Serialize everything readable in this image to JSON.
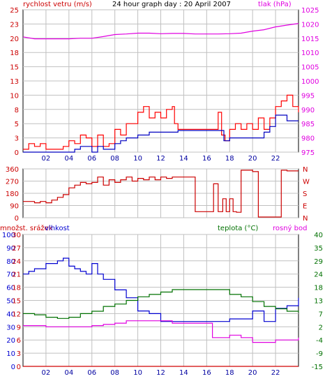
{
  "colors": {
    "wind": "#ff0000",
    "gust_dark": "#0000c0",
    "pressure": "#e000e0",
    "dir": "#cc0000",
    "temp": "#007000",
    "dew": "#e000e0",
    "humid": "#0000d0",
    "rain": "#d00000",
    "frame": "#000000",
    "grid": "#c0c0c0",
    "bg": "#ffffff"
  },
  "chart_data": [
    {
      "type": "line",
      "title": "24 hour graph day : 20 April 2007",
      "left_label": "rychlost vetru (m/s)",
      "right_label": "tlak (hPa)",
      "left_ticks": [
        "25",
        "23",
        "20",
        "18",
        "15",
        "13",
        "10",
        "8",
        "5",
        "3",
        "0"
      ],
      "right_ticks": [
        "1025",
        "1020",
        "1015",
        "1010",
        "1005",
        "1000",
        "995",
        "990",
        "985",
        "980",
        "975"
      ],
      "ylim_left": [
        0,
        25
      ],
      "ylim_right": [
        975,
        1025
      ],
      "xlim": [
        0,
        24
      ],
      "x_ticks": [
        "02",
        "04",
        "06",
        "08",
        "10",
        "12",
        "14",
        "16",
        "18",
        "20",
        "22"
      ],
      "series": [
        {
          "key": "gust",
          "color": "#ff0000",
          "x": [
            0,
            0.5,
            1,
            1.5,
            2,
            2.5,
            3,
            3.5,
            4,
            4.5,
            5,
            5.5,
            6,
            6.5,
            7,
            7.5,
            8,
            8.5,
            9,
            9.5,
            10,
            10.5,
            11,
            11.5,
            12,
            12.5,
            13,
            13.2,
            13.5,
            14,
            15,
            16,
            16.5,
            17,
            17.3,
            17.6,
            18,
            18.5,
            19,
            19.5,
            20,
            20.5,
            21,
            21.5,
            22,
            22.5,
            23,
            23.5,
            24
          ],
          "y": [
            0.5,
            1.5,
            1,
            1.5,
            0.5,
            0.5,
            0.5,
            1,
            2,
            1.5,
            3,
            2.5,
            1,
            3,
            1,
            1.5,
            4,
            3,
            5,
            5,
            7,
            8,
            6,
            7,
            6,
            7.5,
            8,
            5,
            4,
            4,
            4,
            4,
            4,
            7,
            3,
            2,
            4,
            5,
            4,
            5,
            4,
            6,
            4,
            6,
            8,
            9,
            10,
            8,
            7
          ]
        },
        {
          "key": "avg",
          "color": "#0000c0",
          "x": [
            0,
            1,
            2,
            3,
            4,
            4.5,
            5,
            6,
            6.5,
            7,
            8,
            8.5,
            9,
            10,
            11,
            12,
            13,
            13.5,
            14,
            15,
            16,
            16.5,
            17,
            17.5,
            18,
            19,
            20,
            21,
            21.5,
            22,
            23,
            24
          ],
          "y": [
            0,
            0,
            0,
            0,
            0,
            0.5,
            1,
            0,
            1,
            0.5,
            1.5,
            2,
            2.5,
            3,
            3.5,
            3.5,
            3.5,
            3.8,
            3.8,
            3.8,
            3.8,
            3.8,
            3.8,
            2,
            2.5,
            2.5,
            2.5,
            3.5,
            4.5,
            6.5,
            5.5,
            5.5
          ]
        },
        {
          "key": "pressure",
          "color": "#e000e0",
          "axis": "right",
          "x": [
            0,
            1,
            2,
            3,
            4,
            5,
            6,
            7,
            8,
            9,
            10,
            11,
            12,
            13,
            14,
            15,
            16,
            17,
            18,
            19,
            20,
            21,
            22,
            23,
            24
          ],
          "y": [
            1015.5,
            1014.8,
            1014.8,
            1014.8,
            1014.8,
            1015,
            1015,
            1015.6,
            1016.3,
            1016.5,
            1016.8,
            1016.8,
            1016.6,
            1016.7,
            1016.7,
            1016.5,
            1016.5,
            1016.5,
            1016.6,
            1016.8,
            1017.5,
            1018,
            1019,
            1019.6,
            1020.2
          ]
        }
      ]
    },
    {
      "type": "line",
      "right_label_letters": [
        "N",
        "W",
        "S",
        "E",
        "N"
      ],
      "left_ticks": [
        "360",
        "270",
        "180",
        "90",
        "0"
      ],
      "ylim": [
        0,
        360
      ],
      "series": [
        {
          "key": "direction",
          "color": "#cc0000",
          "x": [
            0,
            0.5,
            1,
            1.5,
            2,
            2.5,
            3,
            3.5,
            4,
            4.5,
            5,
            5.5,
            6,
            6.5,
            7,
            7.5,
            8,
            8.5,
            9,
            9.5,
            10,
            10.5,
            11,
            11.5,
            12,
            12.5,
            13,
            13.5,
            14,
            15,
            16,
            16.3,
            16.6,
            17,
            17.4,
            17.7,
            18,
            18.3,
            18.6,
            19,
            19.5,
            20,
            20.5,
            21,
            21.5,
            22,
            22.5,
            23,
            24
          ],
          "y": [
            120,
            120,
            110,
            120,
            110,
            130,
            150,
            170,
            220,
            240,
            260,
            250,
            260,
            300,
            240,
            280,
            260,
            280,
            300,
            270,
            290,
            280,
            300,
            280,
            300,
            290,
            300,
            300,
            300,
            45,
            45,
            45,
            250,
            45,
            140,
            45,
            140,
            45,
            40,
            350,
            350,
            340,
            5,
            5,
            5,
            5,
            350,
            345,
            345
          ]
        }
      ]
    },
    {
      "type": "line",
      "labels": {
        "left1": "množst. srážek",
        "left2": "vlhkost",
        "temp": "teplota (°C)",
        "dew": "rosný bod"
      },
      "humid_ticks": [
        "100",
        "90",
        "80",
        "70",
        "60",
        "50",
        "40",
        "30",
        "20",
        "10",
        "0"
      ],
      "rain_ticks": [
        "30",
        "27",
        "24",
        "21",
        "18",
        "15",
        "12",
        "9",
        "6",
        "3",
        "0"
      ],
      "temp_ticks": [
        "40",
        "35",
        "29",
        "24",
        "18",
        "13",
        "7",
        "2",
        "-4",
        "-9",
        "-15"
      ],
      "ylim_humid": [
        0,
        100
      ],
      "ylim_temp": [
        -15,
        40
      ],
      "series": [
        {
          "key": "humidity",
          "color": "#0000d0",
          "x": [
            0,
            0.5,
            1,
            2,
            3,
            3.5,
            4,
            4.5,
            5,
            5.5,
            6,
            6.5,
            7,
            8,
            9,
            10,
            11,
            12,
            13,
            14,
            15,
            16,
            17,
            18,
            19,
            20,
            21,
            22,
            23,
            24
          ],
          "y": [
            70,
            72,
            74,
            78,
            80,
            82,
            76,
            74,
            72,
            70,
            78,
            70,
            66,
            58,
            52,
            42,
            40,
            34,
            34,
            34,
            34,
            34,
            34,
            36,
            36,
            42,
            34,
            44,
            46,
            52
          ]
        },
        {
          "key": "temp",
          "color": "#007000",
          "axis": "temp",
          "x": [
            0,
            1,
            2,
            3,
            4,
            5,
            6,
            7,
            8,
            9,
            10,
            11,
            12,
            13,
            14,
            15,
            16,
            17,
            18,
            19,
            20,
            21,
            22,
            23,
            24
          ],
          "y": [
            7,
            6.5,
            5.5,
            5,
            5.5,
            7,
            8,
            10,
            11,
            12.5,
            14,
            15,
            16,
            17,
            17,
            17,
            17,
            17,
            15,
            14,
            12,
            10,
            9,
            8,
            7.5
          ]
        },
        {
          "key": "dew",
          "color": "#e000e0",
          "axis": "temp",
          "x": [
            0,
            1,
            2,
            3,
            4,
            5,
            6,
            7,
            8,
            9,
            10,
            11,
            12,
            13,
            14,
            15,
            16,
            16.5,
            17,
            18,
            19,
            20,
            21,
            22,
            23,
            24
          ],
          "y": [
            2,
            2,
            1.5,
            1.5,
            1.5,
            1.5,
            2,
            2.5,
            3,
            4,
            4,
            4,
            4,
            3,
            3,
            3,
            3,
            -3,
            -3,
            -2,
            -3,
            -5,
            -5,
            -4,
            -4,
            -3
          ]
        },
        {
          "key": "rain",
          "color": "#d00000",
          "axis": "rain",
          "x": [
            0,
            24
          ],
          "y": [
            0,
            0
          ]
        }
      ]
    }
  ]
}
